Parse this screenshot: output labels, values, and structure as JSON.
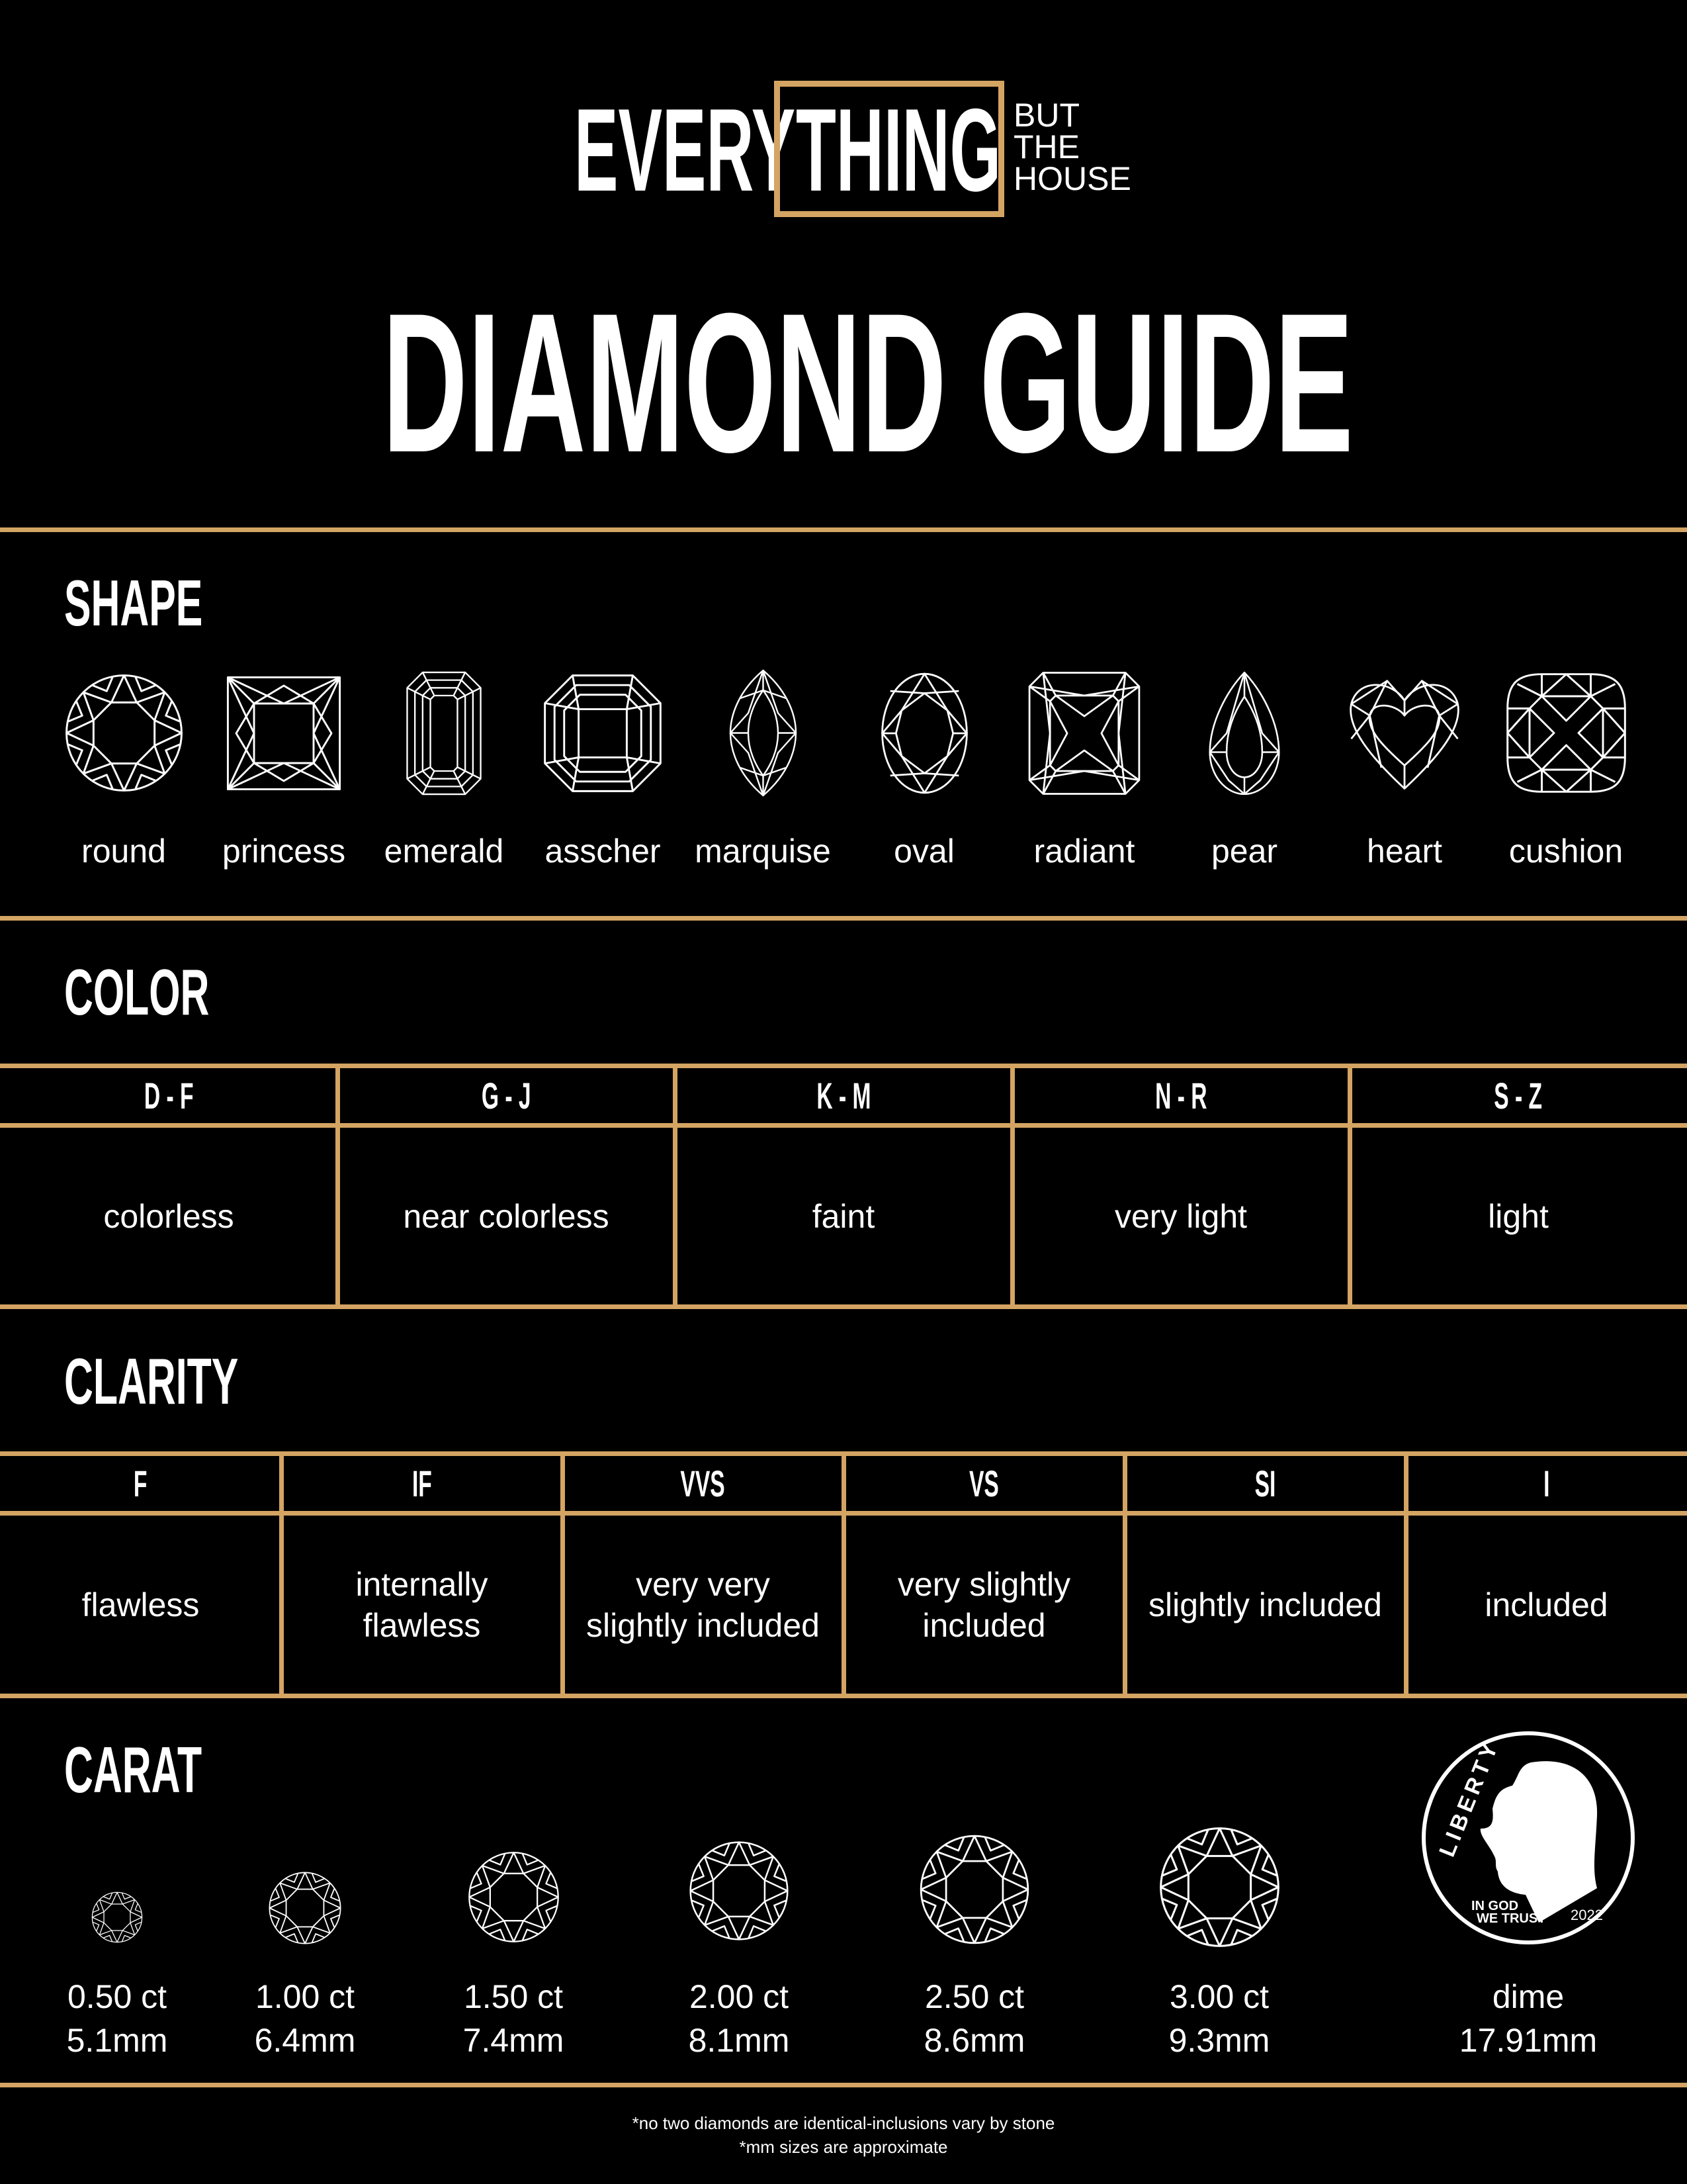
{
  "brand": {
    "every": "EVERY",
    "thing": "THING",
    "but": "BUT",
    "the": "THE",
    "house": "HOUSE",
    "accent_color": "#D4A463"
  },
  "title": "DIAMOND GUIDE",
  "shape": {
    "title": "SHAPE",
    "items": [
      {
        "label": "round",
        "icon": "round"
      },
      {
        "label": "princess",
        "icon": "princess"
      },
      {
        "label": "emerald",
        "icon": "emerald"
      },
      {
        "label": "asscher",
        "icon": "asscher"
      },
      {
        "label": "marquise",
        "icon": "marquise"
      },
      {
        "label": "oval",
        "icon": "oval"
      },
      {
        "label": "radiant",
        "icon": "radiant"
      },
      {
        "label": "pear",
        "icon": "pear"
      },
      {
        "label": "heart",
        "icon": "heart"
      },
      {
        "label": "cushion",
        "icon": "cushion"
      }
    ]
  },
  "color": {
    "title": "COLOR",
    "columns": [
      {
        "grade": "D - F",
        "desc": "colorless"
      },
      {
        "grade": "G - J",
        "desc": "near colorless"
      },
      {
        "grade": "K - M",
        "desc": "faint"
      },
      {
        "grade": "N - R",
        "desc": "very light"
      },
      {
        "grade": "S - Z",
        "desc": "light"
      }
    ]
  },
  "clarity": {
    "title": "CLARITY",
    "columns": [
      {
        "grade": "F",
        "desc": "flawless"
      },
      {
        "grade": "IF",
        "desc": "internally flawless"
      },
      {
        "grade": "VVS",
        "desc": "very very slightly included"
      },
      {
        "grade": "VS",
        "desc": "very slightly included"
      },
      {
        "grade": "SI",
        "desc": "slightly included"
      },
      {
        "grade": "I",
        "desc": "included"
      }
    ]
  },
  "carat": {
    "title": "CARAT",
    "items": [
      {
        "carat": "0.50 ct",
        "mm": "5.1mm"
      },
      {
        "carat": "1.00 ct",
        "mm": "6.4mm"
      },
      {
        "carat": "1.50 ct",
        "mm": "7.4mm"
      },
      {
        "carat": "2.00 ct",
        "mm": "8.1mm"
      },
      {
        "carat": "2.50 ct",
        "mm": "8.6mm"
      },
      {
        "carat": "3.00 ct",
        "mm": "9.3mm"
      }
    ],
    "dime": {
      "label": "dime",
      "mm": "17.91mm",
      "liberty": "LIBERTY",
      "motto1": "IN GOD",
      "motto2": "WE TRUST",
      "year": "2022"
    }
  },
  "footer": {
    "line1": "*no two diamonds are identical-inclusions vary by stone",
    "line2": "*mm sizes are approximate"
  }
}
